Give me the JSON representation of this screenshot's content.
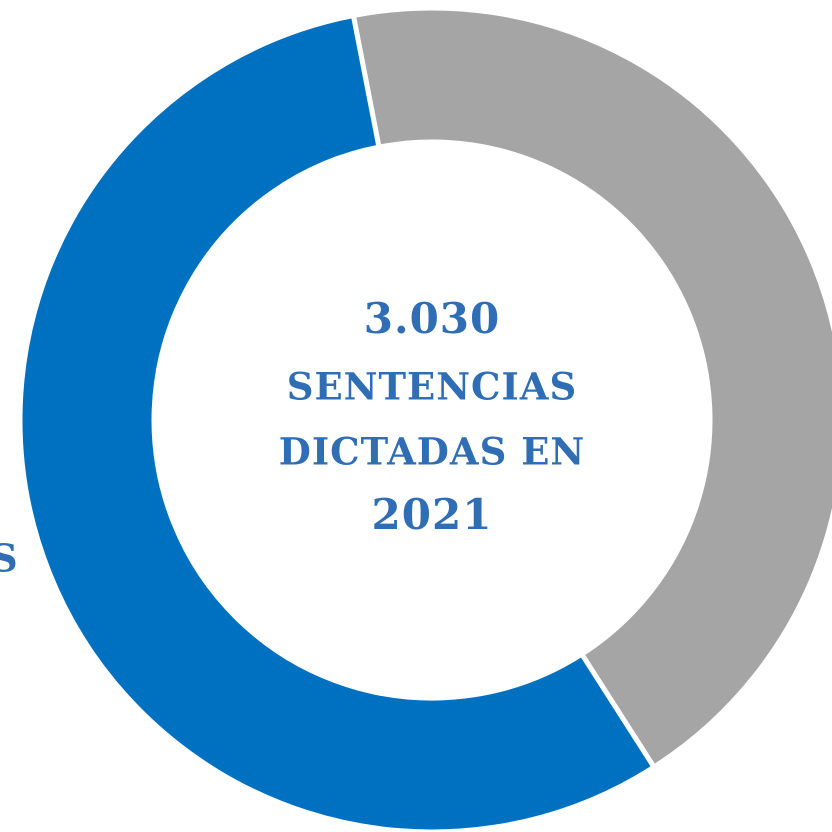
{
  "chart_data": {
    "type": "donut",
    "values": [
      44,
      56
    ],
    "colors": [
      "#a5a5a5",
      "#0070c0"
    ],
    "start_angle": -11,
    "center_text": [
      "3.030",
      "SENTENCIAS",
      "DICTADAS EN",
      "2021"
    ],
    "annotations": [
      "S"
    ]
  }
}
